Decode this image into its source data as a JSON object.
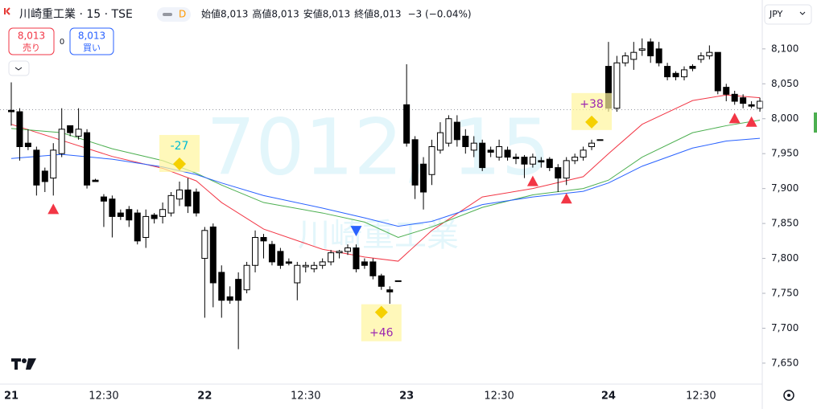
{
  "header": {
    "symbol": "川崎重工業 · 15 · TSE",
    "badge": "D",
    "ohlc": [
      {
        "label": "始値",
        "value": "8,013"
      },
      {
        "label": "高値",
        "value": "8,013"
      },
      {
        "label": "安値",
        "value": "8,013"
      },
      {
        "label": "終値",
        "value": "8,013"
      }
    ],
    "change": "−3 (−0.04%)"
  },
  "trade": {
    "sell": {
      "price": "8,013",
      "label": "売り"
    },
    "spread": "0",
    "buy": {
      "price": "8,013",
      "label": "買い"
    }
  },
  "currency": "JPY",
  "watermark": {
    "code": "7012, 15",
    "name": "川崎重工業"
  },
  "chart_data": {
    "type": "candlestick",
    "categories": [
      "21",
      null,
      null,
      null,
      null,
      null,
      null,
      null,
      null,
      null,
      null,
      "12:30",
      null,
      null,
      null,
      null,
      null,
      null,
      null,
      null,
      null,
      null,
      null,
      "22",
      null,
      null,
      null,
      null,
      null,
      null,
      null,
      null,
      null,
      null,
      null,
      "12:30",
      null,
      null,
      null,
      null,
      null,
      null,
      null,
      null,
      null,
      null,
      null,
      "23",
      null,
      null,
      null,
      null,
      null,
      null,
      null,
      null,
      null,
      null,
      "12:30",
      null,
      null,
      null,
      null,
      null,
      null,
      null,
      null,
      null,
      null,
      null,
      null,
      "24",
      null,
      null,
      null,
      null,
      null,
      null,
      null,
      null,
      null,
      null,
      "12:30",
      null,
      null,
      null,
      null,
      null,
      null,
      null
    ],
    "open": [
      8012,
      8010,
      7965,
      7955,
      7925,
      7915,
      7950,
      7990,
      7975,
      7980,
      7912,
      7888,
      7885,
      7865,
      7870,
      7865,
      7830,
      7862,
      7860,
      7865,
      7885,
      7898,
      7895,
      7800,
      7845,
      7780,
      7745,
      7770,
      7755,
      7790,
      7830,
      7820,
      7810,
      7795,
      7765,
      7788,
      7785,
      7790,
      7795,
      7808,
      7810,
      7815,
      7795,
      7795,
      7775,
      7755,
      7768,
      8020,
      7970,
      7935,
      7920,
      7955,
      7965,
      7995,
      7975,
      7955,
      7965,
      7955,
      7945,
      7955,
      7945,
      7945,
      7935,
      7940,
      7942,
      7930,
      7915,
      7940,
      7945,
      7960,
      7970,
      8075,
      8015,
      8080,
      8085,
      8098,
      8110,
      8100,
      8075,
      8065,
      8060,
      8075,
      8085,
      8090,
      8095,
      8045,
      8035,
      8030,
      8020,
      8015
    ],
    "high": [
      8052,
      8015,
      7985,
      7960,
      7930,
      7965,
      8015,
      7990,
      8015,
      7985,
      7914,
      7892,
      7890,
      7870,
      7875,
      7870,
      7870,
      7865,
      7880,
      7895,
      7910,
      7915,
      7900,
      7845,
      7850,
      7790,
      7760,
      7780,
      7795,
      7840,
      7835,
      7825,
      7815,
      7800,
      7795,
      7795,
      7795,
      7800,
      7812,
      7812,
      7820,
      7820,
      7800,
      7800,
      7778,
      7760,
      7768,
      8078,
      7975,
      7945,
      7970,
      7995,
      8005,
      8005,
      7985,
      7975,
      7970,
      7960,
      7970,
      7960,
      7950,
      7948,
      7950,
      7945,
      7945,
      7935,
      7945,
      7950,
      7960,
      7970,
      7970,
      8110,
      8090,
      8095,
      8110,
      8115,
      8115,
      8110,
      8080,
      8068,
      8075,
      8078,
      8095,
      8105,
      8095,
      8050,
      8040,
      8035,
      8025,
      8030
    ],
    "low": [
      7990,
      7940,
      7955,
      7890,
      7895,
      7890,
      7945,
      7975,
      7970,
      7900,
      7910,
      7845,
      7830,
      7855,
      7845,
      7820,
      7815,
      7850,
      7850,
      7860,
      7875,
      7865,
      7860,
      7715,
      7730,
      7715,
      7735,
      7670,
      7750,
      7780,
      7800,
      7790,
      7785,
      7790,
      7740,
      7780,
      7780,
      7785,
      7790,
      7800,
      7805,
      7780,
      7785,
      7770,
      7755,
      7735,
      7768,
      7960,
      7885,
      7870,
      7905,
      7950,
      7960,
      7960,
      7950,
      7945,
      7925,
      7945,
      7940,
      7940,
      7935,
      7915,
      7930,
      7930,
      7925,
      7895,
      7905,
      7935,
      7940,
      7955,
      7970,
      8010,
      8010,
      8075,
      8070,
      8090,
      8080,
      8075,
      8055,
      8055,
      8055,
      8068,
      8080,
      8085,
      8035,
      8025,
      8020,
      8015,
      8015,
      8010
    ],
    "close": [
      8010,
      7960,
      7960,
      7905,
      7910,
      7955,
      7985,
      7980,
      7985,
      7905,
      7910,
      7882,
      7860,
      7860,
      7855,
      7825,
      7860,
      7857,
      7870,
      7890,
      7898,
      7875,
      7865,
      7840,
      7765,
      7740,
      7740,
      7740,
      7790,
      7830,
      7825,
      7795,
      7790,
      7793,
      7790,
      7790,
      7790,
      7795,
      7808,
      7810,
      7815,
      7785,
      7790,
      7775,
      7760,
      7752,
      7768,
      7965,
      7905,
      7895,
      7960,
      7980,
      8000,
      7970,
      7960,
      7965,
      7930,
      7952,
      7960,
      7945,
      7943,
      7935,
      7945,
      7938,
      7930,
      7915,
      7940,
      7945,
      7955,
      7965,
      7970,
      8015,
      8080,
      8090,
      8095,
      8100,
      8090,
      8080,
      8060,
      8060,
      8070,
      8072,
      8090,
      8095,
      8040,
      8035,
      8025,
      8022,
      8018,
      8025
    ],
    "lines": [
      {
        "color": "#f23645",
        "x": [
          0,
          6,
          12,
          18,
          22,
          25,
          30,
          37,
          42,
          46,
          50,
          56,
          62,
          68,
          71,
          75,
          81,
          85,
          89
        ],
        "values": [
          7992,
          7969,
          7946,
          7929,
          7911,
          7880,
          7842,
          7813,
          7802,
          7796,
          7840,
          7888,
          7900,
          7917,
          7950,
          7992,
          8026,
          8034,
          8030
        ]
      },
      {
        "color": "#4caf50",
        "x": [
          0,
          6,
          12,
          18,
          22,
          25,
          30,
          37,
          42,
          46,
          50,
          56,
          62,
          68,
          71,
          75,
          81,
          85,
          89
        ],
        "values": [
          7986,
          7980,
          7957,
          7940,
          7922,
          7905,
          7880,
          7865,
          7852,
          7830,
          7845,
          7873,
          7891,
          7900,
          7912,
          7945,
          7980,
          7990,
          7998
        ]
      },
      {
        "color": "#2962ff",
        "x": [
          0,
          6,
          12,
          18,
          22,
          25,
          30,
          37,
          42,
          46,
          50,
          56,
          62,
          68,
          71,
          75,
          81,
          85,
          89
        ],
        "values": [
          7943,
          7949,
          7942,
          7931,
          7920,
          7908,
          7890,
          7872,
          7858,
          7846,
          7853,
          7877,
          7888,
          7896,
          7908,
          7932,
          7958,
          7968,
          7972
        ]
      }
    ],
    "signals": [
      {
        "index": 5,
        "direction": "up"
      },
      {
        "index": 41,
        "direction": "down"
      },
      {
        "index": 62,
        "direction": "up"
      },
      {
        "index": 66,
        "direction": "up"
      },
      {
        "index": 86,
        "direction": "up"
      },
      {
        "index": 88,
        "direction": "up"
      }
    ],
    "annotations": [
      {
        "label": "-27",
        "index": 20,
        "position": "above",
        "color": "#00bcd4"
      },
      {
        "label": "+46",
        "index": 44,
        "position": "below",
        "color": "#9c27b0"
      },
      {
        "label": "+38",
        "index": 69,
        "position": "above",
        "color": "#9c27b0"
      }
    ],
    "price_line": 8013,
    "ylim": [
      7620,
      8170
    ],
    "yticks": [
      {
        "value": 7650,
        "label": "7,650"
      },
      {
        "value": 7700,
        "label": "7,700"
      },
      {
        "value": 7750,
        "label": "7,750"
      },
      {
        "value": 7800,
        "label": "7,800"
      },
      {
        "value": 7850,
        "label": "7,850"
      },
      {
        "value": 7900,
        "label": "7,900"
      },
      {
        "value": 7950,
        "label": "7,950"
      },
      {
        "value": 8000,
        "label": "8,000"
      },
      {
        "value": 8050,
        "label": "8,050"
      },
      {
        "value": 8100,
        "label": "8,100"
      }
    ]
  }
}
